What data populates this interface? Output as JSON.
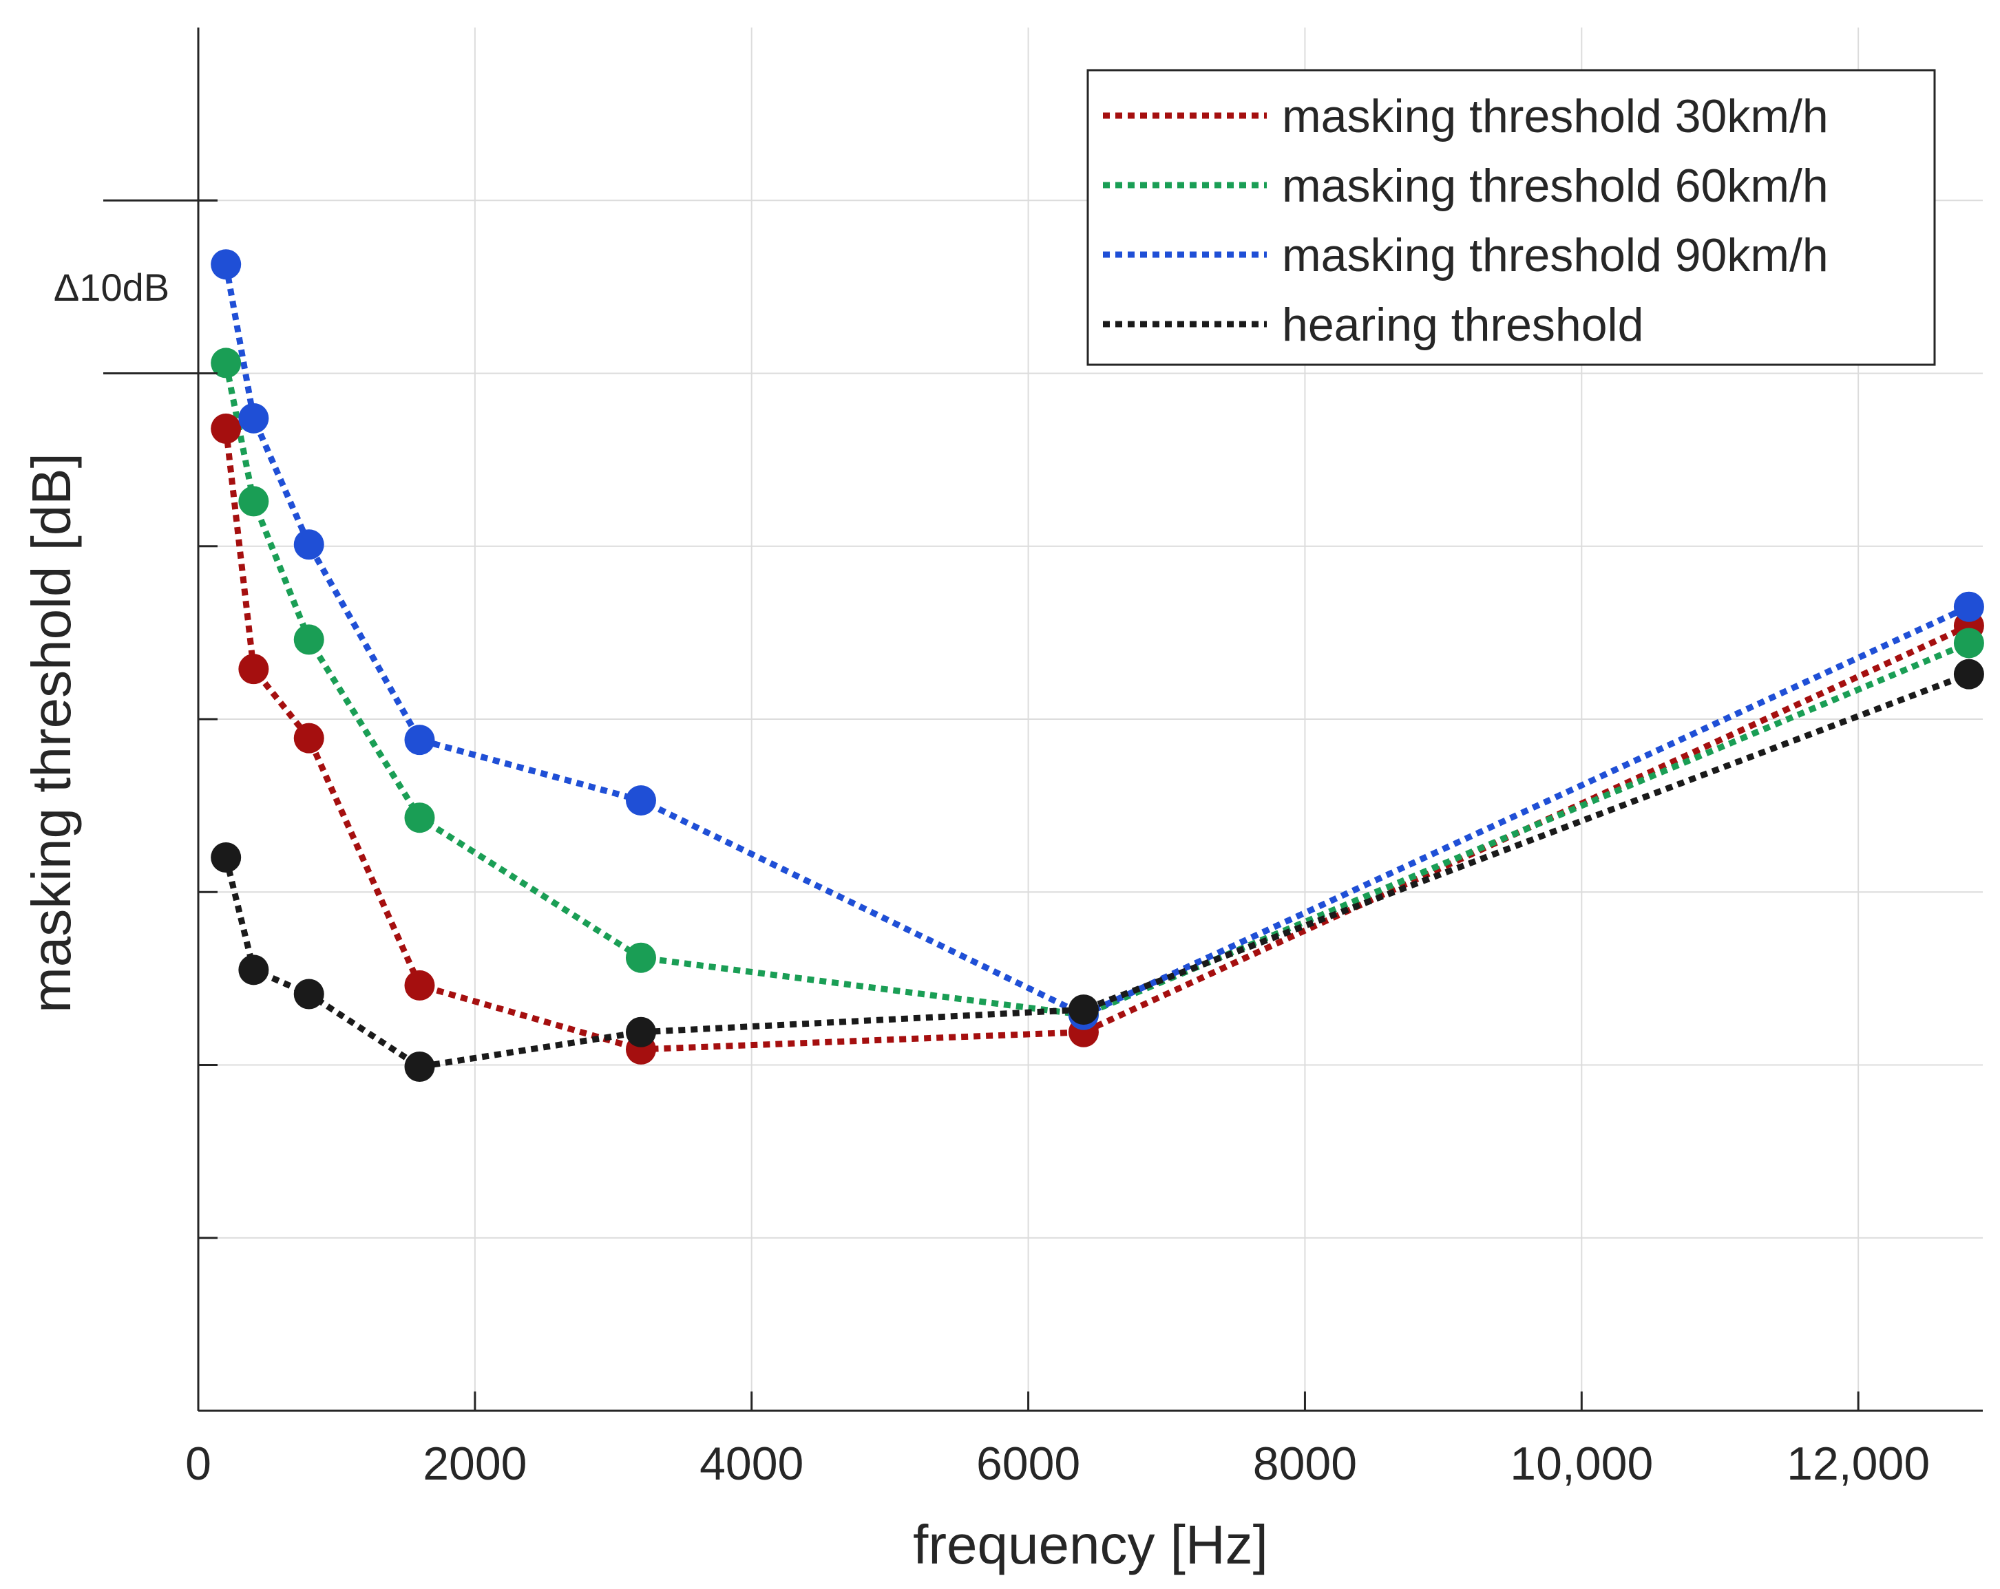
{
  "chart_data": {
    "type": "line",
    "xlabel": "frequency [Hz]",
    "ylabel": "masking threshold [dB]",
    "xlim": [
      0,
      12900
    ],
    "ylim": [
      0,
      80
    ],
    "xticks": [
      0,
      2000,
      4000,
      6000,
      8000,
      10000,
      12000
    ],
    "xtick_labels": [
      "0",
      "2000",
      "4000",
      "6000",
      "8000",
      "10,000",
      "12,000"
    ],
    "yticks": [
      10,
      20,
      30,
      40,
      50,
      60,
      70
    ],
    "grid": true,
    "legend_position": "top-right",
    "annotation": {
      "text": "Δ10dB",
      "from": 60,
      "to": 70
    },
    "series": [
      {
        "name": "masking threshold 30km/h",
        "color": "#a50f0f",
        "x": [
          200,
          400,
          800,
          1600,
          3200,
          6400,
          12800
        ],
        "values": [
          56.8,
          42.9,
          38.9,
          24.6,
          20.9,
          21.9,
          45.4
        ]
      },
      {
        "name": "masking threshold 60km/h",
        "color": "#1a9e55",
        "x": [
          200,
          400,
          800,
          1600,
          3200,
          6400,
          12800
        ],
        "values": [
          60.6,
          52.6,
          44.6,
          34.3,
          26.2,
          22.9,
          44.4
        ]
      },
      {
        "name": "masking threshold 90km/h",
        "color": "#1f4fd6",
        "x": [
          200,
          400,
          800,
          1600,
          3200,
          6400,
          12800
        ],
        "values": [
          66.3,
          57.4,
          50.1,
          38.8,
          35.3,
          22.9,
          46.5
        ]
      },
      {
        "name": "hearing threshold",
        "color": "#1a1a1a",
        "x": [
          200,
          400,
          800,
          1600,
          3200,
          6400,
          12800
        ],
        "values": [
          32.0,
          25.5,
          24.1,
          19.9,
          21.9,
          23.2,
          42.6
        ]
      }
    ]
  }
}
